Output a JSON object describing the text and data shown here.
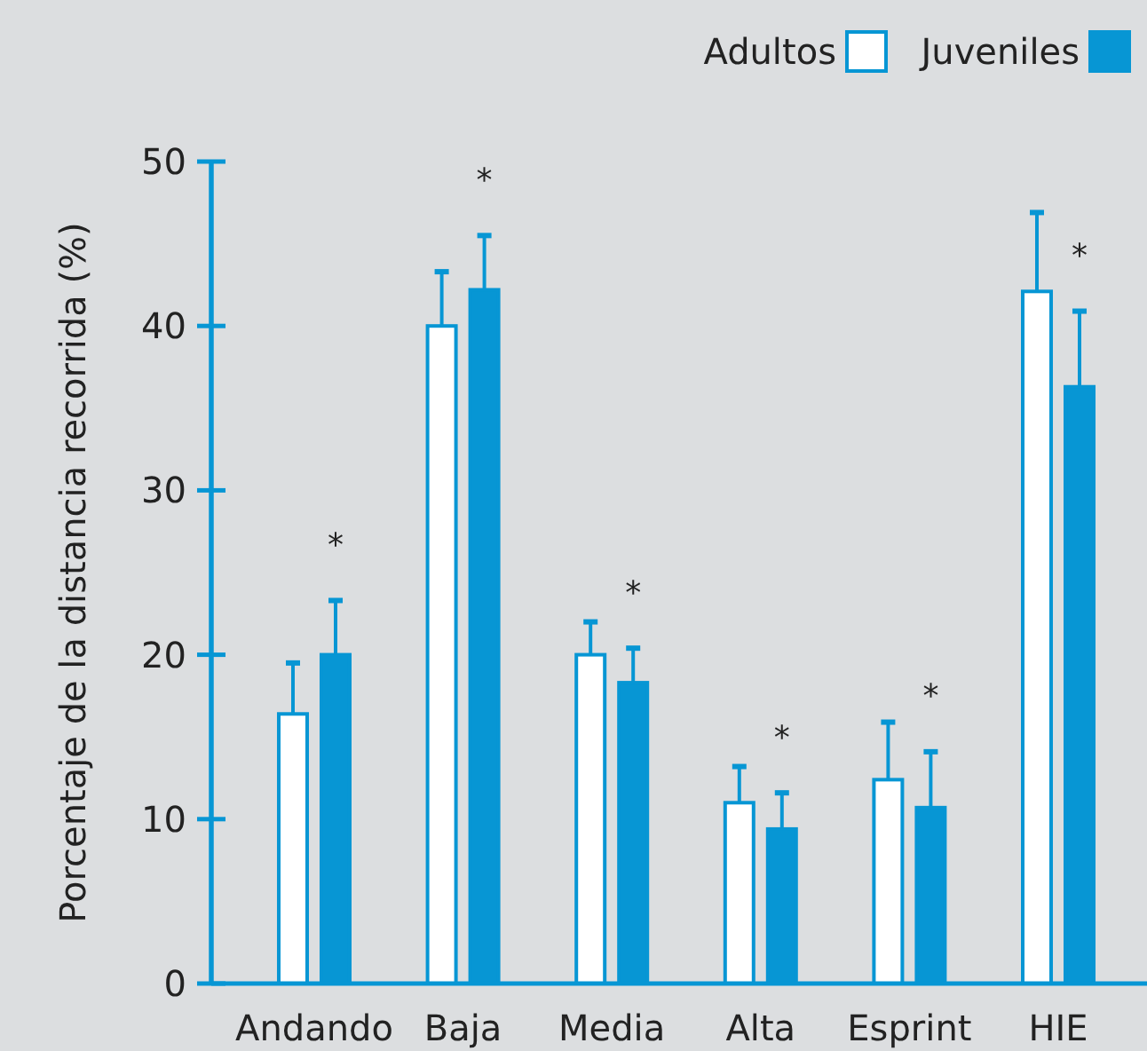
{
  "chart_data": {
    "type": "bar",
    "ylabel": "Porcentaje de la distancia recorrida (%)",
    "categories": [
      "Andando",
      "Baja",
      "Media",
      "Alta",
      "Esprint",
      "HIE"
    ],
    "series": [
      {
        "name": "Adultos",
        "color": "#ffffff",
        "values": [
          16.4,
          40.0,
          20.0,
          11.0,
          12.4,
          42.1
        ],
        "errors": [
          3.1,
          3.3,
          2.0,
          2.2,
          3.5,
          4.8
        ]
      },
      {
        "name": "Juveniles",
        "color": "#0796d4",
        "values": [
          20.0,
          42.2,
          18.3,
          9.4,
          10.7,
          36.3
        ],
        "errors": [
          3.3,
          3.3,
          2.1,
          2.2,
          3.4,
          4.6
        ]
      }
    ],
    "ylim": [
      0,
      50
    ],
    "yticks": [
      0,
      10,
      20,
      30,
      40,
      50
    ],
    "grid": false,
    "legend": "top right",
    "annotations": [
      "*",
      "*",
      "*",
      "*",
      "*",
      "*"
    ]
  }
}
